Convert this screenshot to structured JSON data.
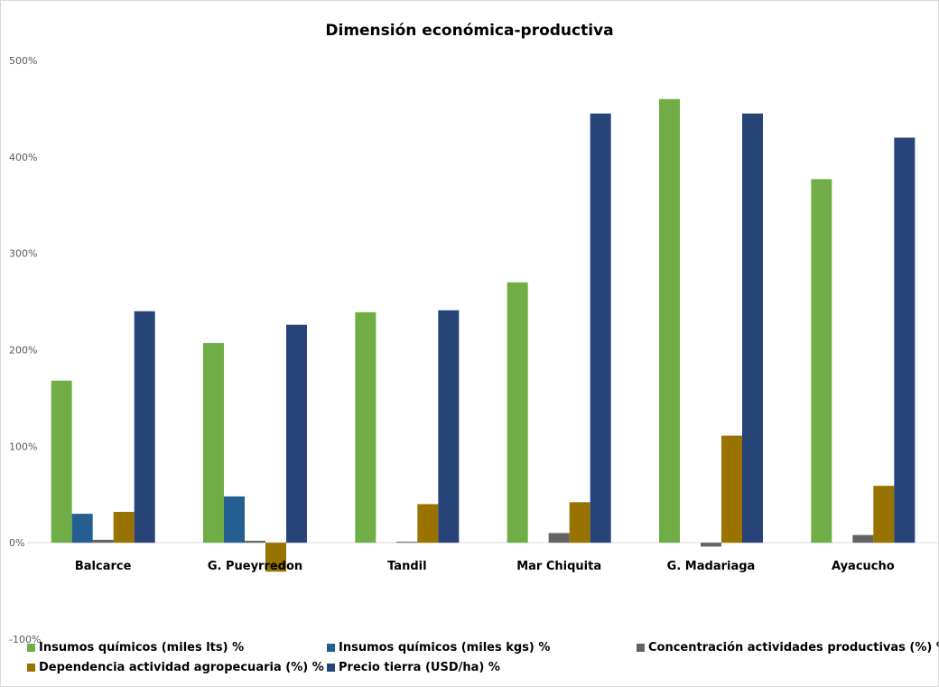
{
  "chart_data": {
    "type": "bar",
    "title": "Dimensión económica-productiva",
    "xlabel": "",
    "ylabel": "",
    "ylim": [
      -100,
      500
    ],
    "yticks": [
      "-100%",
      "0%",
      "100%",
      "200%",
      "300%",
      "400%",
      "500%"
    ],
    "categories": [
      "Balcarce",
      "G. Pueyrredon",
      "Tandil",
      "Mar Chiquita",
      "G. Madariaga",
      "Ayacucho"
    ],
    "series": [
      {
        "name": "Insumos químicos (miles lts) %",
        "color": "#70ad47",
        "values": [
          168,
          207,
          239,
          270,
          460,
          377
        ]
      },
      {
        "name": "Insumos químicos (miles kgs) %",
        "color": "#255e91",
        "values": [
          30,
          48,
          0,
          0,
          0,
          0
        ]
      },
      {
        "name": "Concentración actividades productivas (%) %",
        "color": "#636363",
        "values": [
          3,
          2,
          1,
          10,
          -4,
          8
        ]
      },
      {
        "name": "Dependencia actividad agropecuaria (%) %",
        "color": "#997300",
        "values": [
          32,
          -30,
          40,
          42,
          111,
          59
        ]
      },
      {
        "name": "Precio tierra (USD/ha) %",
        "color": "#264478",
        "values": [
          240,
          226,
          241,
          445,
          445,
          420
        ]
      }
    ],
    "grid": false,
    "legend_position": "bottom"
  }
}
